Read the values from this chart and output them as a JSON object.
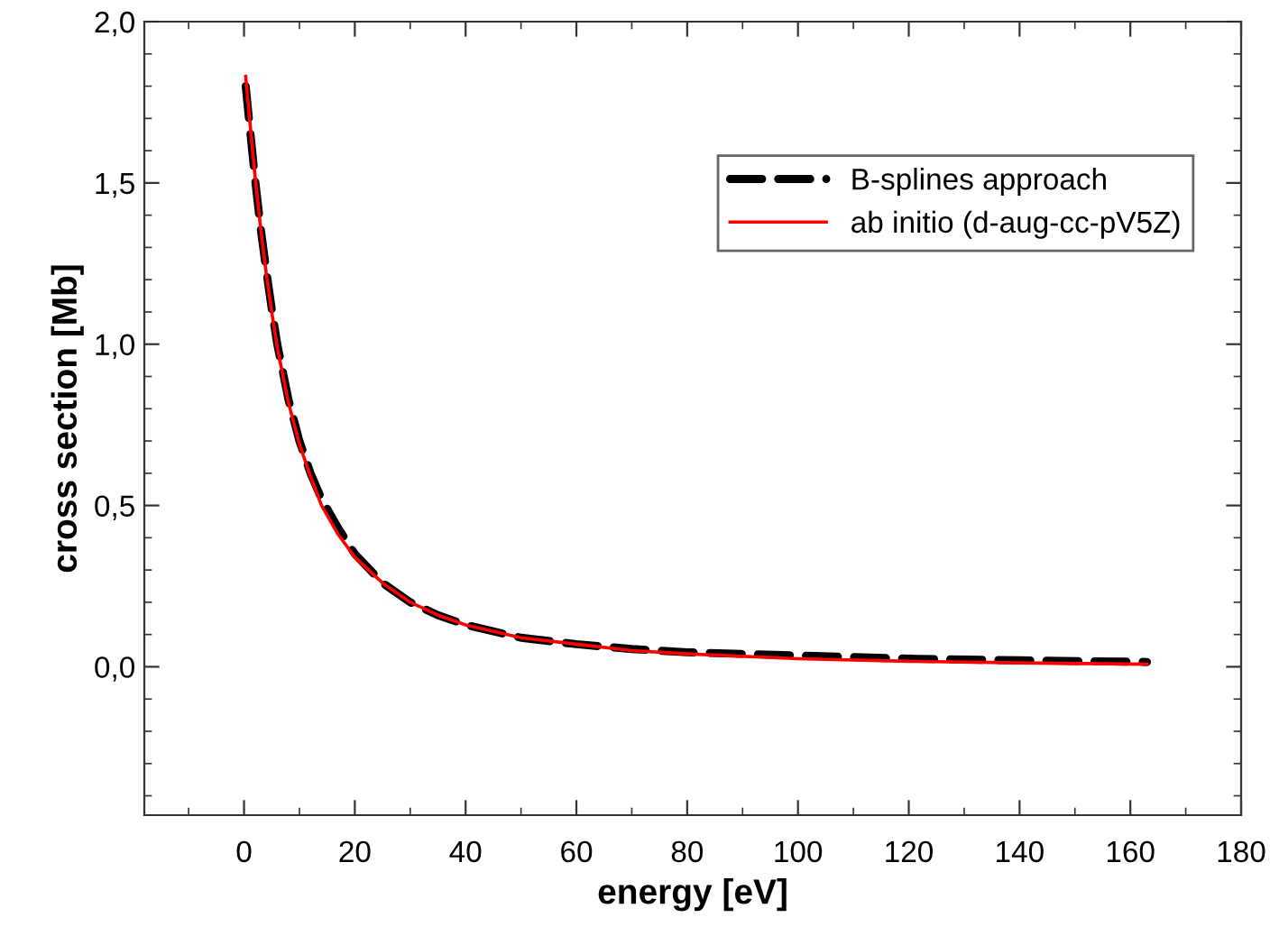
{
  "chart_data": {
    "type": "line",
    "xlabel": "energy [eV]",
    "ylabel": "cross section [Mb]",
    "x": [
      0.3,
      1,
      2,
      3,
      4,
      5,
      6,
      8,
      10,
      12,
      14,
      17,
      20,
      25,
      30,
      35,
      40,
      50,
      60,
      70,
      80,
      100,
      120,
      140,
      163
    ],
    "series": [
      {
        "name": "B-splines approach",
        "color": "#000000",
        "line_style": "dashed",
        "values": [
          1.8,
          1.68,
          1.51,
          1.36,
          1.23,
          1.11,
          1.0,
          0.83,
          0.7,
          0.6,
          0.52,
          0.43,
          0.35,
          0.26,
          0.2,
          0.16,
          0.13,
          0.09,
          0.07,
          0.055,
          0.045,
          0.035,
          0.025,
          0.02,
          0.015
        ]
      },
      {
        "name": "ab initio (d-aug-cc-pV5Z)",
        "color": "#ff0000",
        "line_style": "solid",
        "values": [
          1.83,
          1.7,
          1.52,
          1.36,
          1.22,
          1.1,
          0.99,
          0.82,
          0.69,
          0.59,
          0.5,
          0.41,
          0.34,
          0.26,
          0.2,
          0.16,
          0.13,
          0.09,
          0.07,
          0.05,
          0.04,
          0.025,
          0.017,
          0.012,
          0.008
        ]
      }
    ],
    "xlim": [
      -18,
      180
    ],
    "xticks": [
      0,
      20,
      40,
      60,
      80,
      100,
      120,
      140,
      160,
      180
    ],
    "ylim": [
      -0.46,
      2.0
    ],
    "yticks": [
      {
        "value": 0,
        "label": "0,0"
      },
      {
        "value": 0.5,
        "label": "0,5"
      },
      {
        "value": 1.0,
        "label": "1,0"
      },
      {
        "value": 1.5,
        "label": "1,5"
      },
      {
        "value": 2.0,
        "label": "2,0"
      }
    ],
    "grid": false,
    "legend": "top right",
    "marker": "none"
  }
}
